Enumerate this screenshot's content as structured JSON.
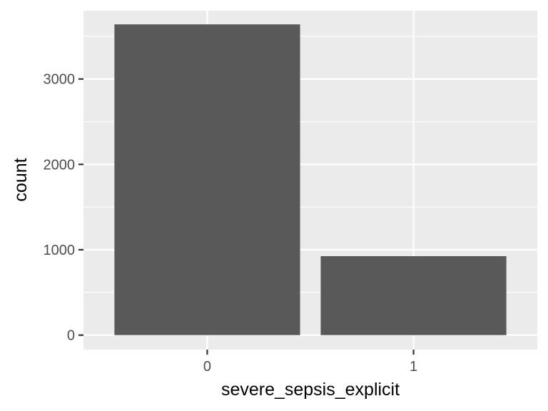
{
  "chart_data": {
    "type": "bar",
    "title": "",
    "xlabel": "severe_sepsis_explicit",
    "ylabel": "count",
    "categories": [
      "0",
      "1"
    ],
    "values": [
      3640,
      925
    ],
    "ylim": [
      -170,
      3800
    ],
    "y_ticks": [
      0,
      1000,
      2000,
      3000
    ],
    "y_tick_labels": [
      "0",
      "1000",
      "2000",
      "3000"
    ],
    "grid": true,
    "legend": "none",
    "colors": {
      "panel_background": "#ebebeb",
      "grid_major": "#ffffff",
      "bar_fill": "#595959",
      "tick_mark": "#333333"
    }
  }
}
